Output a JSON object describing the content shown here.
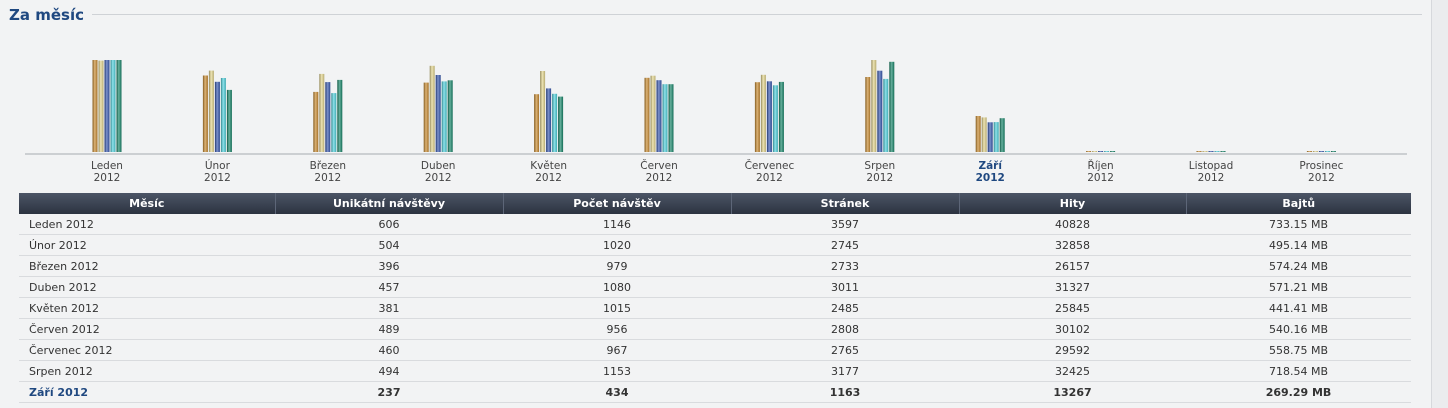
{
  "section": {
    "title": "Za měsíc"
  },
  "chart_data": {
    "type": "bar",
    "categories": [
      {
        "month": "Leden",
        "year": "2012"
      },
      {
        "month": "Únor",
        "year": "2012"
      },
      {
        "month": "Březen",
        "year": "2012"
      },
      {
        "month": "Duben",
        "year": "2012"
      },
      {
        "month": "Květen",
        "year": "2012"
      },
      {
        "month": "Červen",
        "year": "2012"
      },
      {
        "month": "Červenec",
        "year": "2012"
      },
      {
        "month": "Srpen",
        "year": "2012"
      },
      {
        "month": "Září",
        "year": "2012"
      },
      {
        "month": "Říjen",
        "year": "2012"
      },
      {
        "month": "Listopad",
        "year": "2012"
      },
      {
        "month": "Prosinec",
        "year": "2012"
      }
    ],
    "current_index": 8,
    "series": [
      {
        "key": "unique",
        "color": "#c98a2e",
        "values": [
          606,
          504,
          396,
          457,
          381,
          489,
          460,
          494,
          237,
          0,
          0,
          0
        ]
      },
      {
        "key": "visits",
        "color": "#e4d58c",
        "values": [
          1146,
          1020,
          979,
          1080,
          1015,
          956,
          967,
          1153,
          434,
          0,
          0,
          0
        ]
      },
      {
        "key": "pages",
        "color": "#3657b0",
        "values": [
          3597,
          2745,
          2733,
          3011,
          2485,
          2808,
          2765,
          3177,
          1163,
          0,
          0,
          0
        ]
      },
      {
        "key": "hits",
        "color": "#4fd3df",
        "values": [
          40828,
          32858,
          26157,
          31327,
          25845,
          30102,
          29592,
          32425,
          13267,
          0,
          0,
          0
        ]
      },
      {
        "key": "bytes",
        "color": "#17876a",
        "values": [
          733.15,
          495.14,
          574.24,
          571.21,
          441.41,
          540.16,
          558.75,
          718.54,
          269.29,
          0,
          0,
          0
        ]
      }
    ]
  },
  "table": {
    "headers": [
      "Měsíc",
      "Unikátní návštěvy",
      "Počet návštěv",
      "Stránek",
      "Hity",
      "Bajtů"
    ],
    "rows": [
      [
        "Leden 2012",
        "606",
        "1146",
        "3597",
        "40828",
        "733.15 MB"
      ],
      [
        "Únor 2012",
        "504",
        "1020",
        "2745",
        "32858",
        "495.14 MB"
      ],
      [
        "Březen 2012",
        "396",
        "979",
        "2733",
        "26157",
        "574.24 MB"
      ],
      [
        "Duben 2012",
        "457",
        "1080",
        "3011",
        "31327",
        "571.21 MB"
      ],
      [
        "Květen 2012",
        "381",
        "1015",
        "2485",
        "25845",
        "441.41 MB"
      ],
      [
        "Červen 2012",
        "489",
        "956",
        "2808",
        "30102",
        "540.16 MB"
      ],
      [
        "Červenec 2012",
        "460",
        "967",
        "2765",
        "29592",
        "558.75 MB"
      ],
      [
        "Srpen 2012",
        "494",
        "1153",
        "3177",
        "32425",
        "718.54 MB"
      ],
      [
        "Září 2012",
        "237",
        "434",
        "1163",
        "13267",
        "269.29 MB"
      ]
    ]
  }
}
